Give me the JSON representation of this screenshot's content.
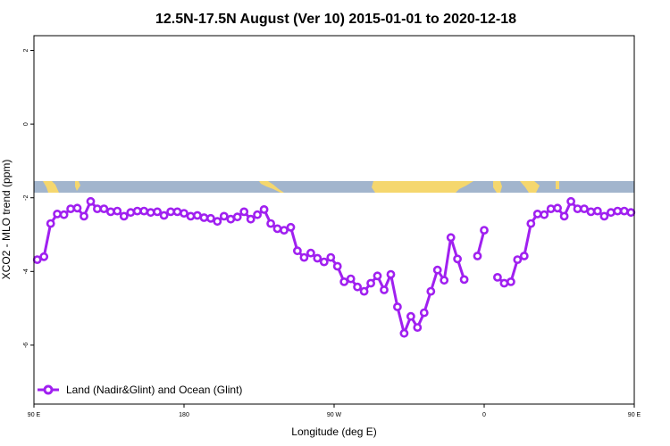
{
  "chart_data": {
    "type": "line",
    "title": "12.5N-17.5N August (Ver 10)   2015-01-01 to 2020-12-18",
    "xlabel": "Longitude (deg E)",
    "ylabel": "XCO2 - MLO trend (ppm)",
    "xlim": [
      90,
      450
    ],
    "ylim": [
      -7.6,
      2.4
    ],
    "x_ticks": [
      {
        "value": 90,
        "label": "90 E"
      },
      {
        "value": 180,
        "label": "180"
      },
      {
        "value": 270,
        "label": "90 W"
      },
      {
        "value": 360,
        "label": "0"
      },
      {
        "value": 450,
        "label": "90 E"
      },
      {
        "value": 540,
        "label": "180"
      }
    ],
    "y_ticks": [
      {
        "value": 2,
        "label": "2"
      },
      {
        "value": 0,
        "label": "0"
      },
      {
        "value": -2,
        "label": "-2"
      },
      {
        "value": -4,
        "label": "-4"
      },
      {
        "value": -6,
        "label": "-6"
      }
    ],
    "legend_position": "bottom-left",
    "colors": {
      "series": "#a020f0",
      "ocean": "#a2b5cd",
      "land": "#f5d76e"
    },
    "series": [
      {
        "name": "Land (Nadir&Glint) and Ocean (Glint)",
        "points": [
          [
            92,
            -3.68
          ],
          [
            96,
            -3.6
          ],
          [
            100,
            -2.7
          ],
          [
            104,
            -2.44
          ],
          [
            108,
            -2.46
          ],
          [
            112,
            -2.3
          ],
          [
            116,
            -2.28
          ],
          [
            120,
            -2.5
          ],
          [
            124,
            -2.1
          ],
          [
            128,
            -2.3
          ],
          [
            132,
            -2.3
          ],
          [
            136,
            -2.38
          ],
          [
            140,
            -2.36
          ],
          [
            144,
            -2.5
          ],
          [
            148,
            -2.4
          ],
          [
            152,
            -2.36
          ],
          [
            156,
            -2.36
          ],
          [
            160,
            -2.4
          ],
          [
            164,
            -2.38
          ],
          [
            168,
            -2.48
          ],
          [
            172,
            -2.38
          ],
          [
            176,
            -2.38
          ],
          [
            180,
            -2.42
          ],
          [
            184,
            -2.5
          ],
          [
            188,
            -2.48
          ],
          [
            192,
            -2.54
          ],
          [
            196,
            -2.56
          ],
          [
            200,
            -2.64
          ],
          [
            204,
            -2.5
          ],
          [
            208,
            -2.58
          ],
          [
            212,
            -2.52
          ],
          [
            216,
            -2.38
          ],
          [
            220,
            -2.58
          ],
          [
            224,
            -2.46
          ],
          [
            228,
            -2.32
          ],
          [
            232,
            -2.7
          ],
          [
            236,
            -2.84
          ],
          [
            240,
            -2.88
          ],
          [
            244,
            -2.8
          ],
          [
            248,
            -3.44
          ],
          [
            252,
            -3.62
          ],
          [
            256,
            -3.5
          ],
          [
            260,
            -3.64
          ],
          [
            264,
            -3.74
          ],
          [
            268,
            -3.62
          ],
          [
            272,
            -3.86
          ],
          [
            276,
            -4.28
          ],
          [
            280,
            -4.2
          ],
          [
            284,
            -4.42
          ],
          [
            288,
            -4.54
          ],
          [
            292,
            -4.32
          ],
          [
            296,
            -4.12
          ],
          [
            300,
            -4.5
          ],
          [
            304,
            -4.08
          ],
          [
            308,
            -4.96
          ],
          [
            312,
            -5.68
          ],
          [
            316,
            -5.22
          ],
          [
            320,
            -5.52
          ],
          [
            324,
            -5.12
          ],
          [
            328,
            -4.54
          ],
          [
            332,
            -3.96
          ],
          [
            336,
            -4.24
          ],
          [
            340,
            -3.08
          ],
          [
            344,
            -3.66
          ],
          [
            348,
            -4.22
          ],
          null,
          [
            356,
            -3.58
          ],
          [
            360,
            -2.88
          ],
          null,
          [
            368,
            -4.16
          ],
          [
            372,
            -4.32
          ],
          [
            376,
            -4.28
          ],
          [
            380,
            -3.68
          ],
          [
            384,
            -3.58
          ],
          [
            388,
            -2.7
          ],
          [
            392,
            -2.44
          ],
          [
            396,
            -2.46
          ],
          [
            400,
            -2.3
          ],
          [
            404,
            -2.28
          ],
          [
            408,
            -2.5
          ],
          [
            412,
            -2.1
          ],
          [
            416,
            -2.3
          ],
          [
            420,
            -2.3
          ],
          [
            424,
            -2.38
          ],
          [
            428,
            -2.36
          ],
          [
            432,
            -2.5
          ],
          [
            436,
            -2.4
          ],
          [
            440,
            -2.36
          ],
          [
            444,
            -2.36
          ],
          [
            448,
            -2.4
          ]
        ]
      }
    ]
  }
}
